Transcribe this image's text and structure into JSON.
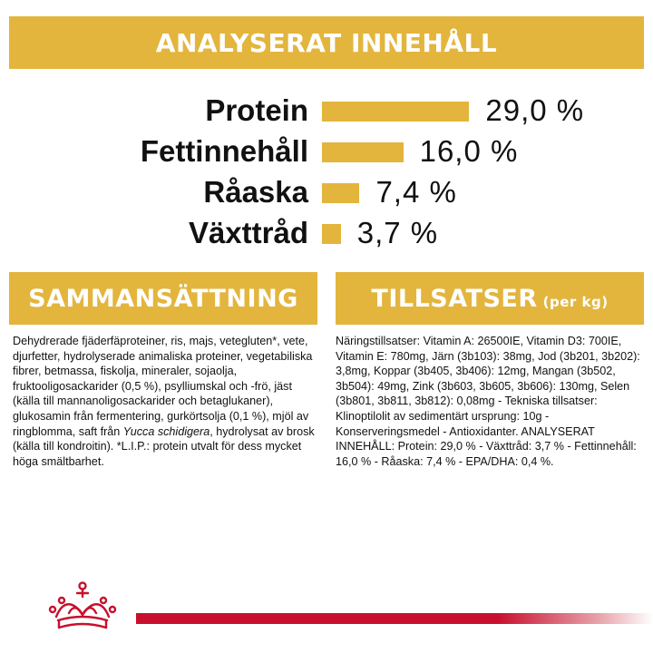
{
  "analysis": {
    "title": "ANALYSERAT INNEHÅLL",
    "nutrients": [
      {
        "label": "Protein",
        "value": "29,0 %",
        "percent": 29.0
      },
      {
        "label": "Fettinnehåll",
        "value": "16,0 %",
        "percent": 16.0
      },
      {
        "label": "Råaska",
        "value": "7,4 %",
        "percent": 7.4
      },
      {
        "label": "Växttråd",
        "value": "3,7 %",
        "percent": 3.7
      }
    ]
  },
  "composition": {
    "title": "SAMMANSÄTTNING",
    "text_before": "Dehydrerade fjäderfäproteiner, ris, majs, vetegluten*, vete, djurfetter, hydrolyserade animaliska proteiner, vegetabiliska fibrer, betmassa, fiskolja, mineraler, sojaolja, fruktooligosackarider (0,5 %), psylliumskal och -frö, jäst (källa till mannanoligosackarider och betaglukaner), glukosamin från fermentering, gurkörtsolja (0,1 %), mjöl av ringblomma, saft från ",
    "text_italic": "Yucca schidigera",
    "text_after": ", hydrolysat av brosk (källa till kondroitin). *L.I.P.: protein utvalt för dess mycket höga smältbarhet."
  },
  "additives": {
    "title": "TILLSATSER",
    "title_suffix": "(per kg)",
    "text": "Näringstillsatser: Vitamin A: 26500IE, Vitamin D3: 700IE, Vitamin E: 780mg, Järn (3b103): 38mg, Jod (3b201, 3b202): 3,8mg, Koppar (3b405, 3b406): 12mg, Mangan (3b502, 3b504): 49mg, Zink (3b603, 3b605, 3b606): 130mg, Selen (3b801, 3b811, 3b812): 0,08mg - Tekniska tillsatser: Klinoptilolit av sedimentärt ursprung: 10g - Konserveringsmedel - Antioxidanter. ANALYSERAT INNEHÅLL: Protein: 29,0 % - Växttråd: 3,7 % - Fettinnehåll: 16,0 % - Råaska: 7,4 % - EPA/DHA: 0,4 %."
  },
  "colors": {
    "accent": "#E3B53D",
    "brand_red": "#C8102E"
  },
  "logo": {
    "icon": "crown-icon"
  }
}
